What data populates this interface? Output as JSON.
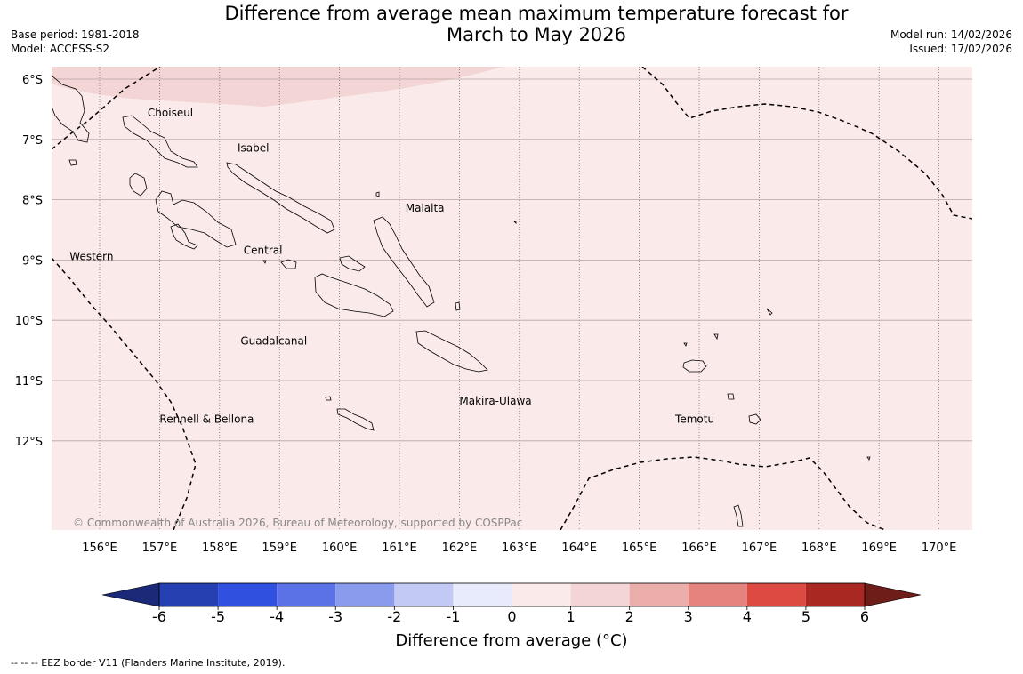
{
  "header": {
    "title_line1": "Difference from average mean maximum temperature forecast for",
    "title_line2": "March to May 2026",
    "base_period": "Base period: 1981-2018",
    "model": "Model: ACCESS-S2",
    "model_run": "Model run: 14/02/2026",
    "issued": "Issued: 17/02/2026"
  },
  "map": {
    "lon_range": [
      155.2,
      170.5
    ],
    "lat_range": [
      -13.5,
      -5.8
    ],
    "lon_ticks": [
      156,
      157,
      158,
      159,
      160,
      161,
      162,
      163,
      164,
      165,
      166,
      167,
      168,
      169,
      170
    ],
    "lon_tick_labels": [
      "156°E",
      "157°E",
      "158°E",
      "159°E",
      "160°E",
      "161°E",
      "162°E",
      "163°E",
      "164°E",
      "165°E",
      "166°E",
      "167°E",
      "168°E",
      "169°E",
      "170°E"
    ],
    "lat_ticks": [
      -6,
      -7,
      -8,
      -9,
      -10,
      -11,
      -12
    ],
    "lat_tick_labels": [
      "6°S",
      "7°S",
      "8°S",
      "9°S",
      "10°S",
      "11°S",
      "12°S"
    ],
    "background_category": "0 to 1",
    "region_labels": [
      {
        "name": "Choiseul",
        "lon": 156.8,
        "lat": -6.62
      },
      {
        "name": "Isabel",
        "lon": 158.3,
        "lat": -7.2
      },
      {
        "name": "Malaita",
        "lon": 161.1,
        "lat": -8.2
      },
      {
        "name": "Western",
        "lon": 155.5,
        "lat": -9.0
      },
      {
        "name": "Central",
        "lon": 158.4,
        "lat": -8.9
      },
      {
        "name": "Guadalcanal",
        "lon": 158.35,
        "lat": -10.4
      },
      {
        "name": "Makira-Ulawa",
        "lon": 162.0,
        "lat": -11.4
      },
      {
        "name": "Rennell & Bellona",
        "lon": 157.0,
        "lat": -11.7
      },
      {
        "name": "Temotu",
        "lon": 165.6,
        "lat": -11.7
      }
    ],
    "copyright": "© Commonwealth of Australia 2026, Bureau of Meteorology, supported by COSPPac",
    "warm_band_category": "1 to 2"
  },
  "colorbar": {
    "ticks": [
      "-6",
      "-5",
      "-4",
      "-3",
      "-2",
      "-1",
      "0",
      "1",
      "2",
      "3",
      "4",
      "5",
      "6"
    ],
    "bins": [
      {
        "range": "-6 to -5",
        "color": "#2540b0"
      },
      {
        "range": "-5 to -4",
        "color": "#3050e0"
      },
      {
        "range": "-4 to -3",
        "color": "#5a72e6"
      },
      {
        "range": "-3 to -2",
        "color": "#8a9bee"
      },
      {
        "range": "-2 to -1",
        "color": "#c2c9f5"
      },
      {
        "range": "-1 to 0",
        "color": "#e8ebfb"
      },
      {
        "range": "0 to 1",
        "color": "#fbeaea"
      },
      {
        "range": "1 to 2",
        "color": "#f2d5d4"
      },
      {
        "range": "2 to 3",
        "color": "#ecaeab"
      },
      {
        "range": "3 to 4",
        "color": "#e5847e"
      },
      {
        "range": "4 to 5",
        "color": "#dc4a42"
      },
      {
        "range": "5 to 6",
        "color": "#a92922"
      }
    ],
    "low_extend_color": "#1a2a78",
    "high_extend_color": "#6e1d18",
    "label": "Difference from average (°C)"
  },
  "footer": {
    "eez_note": "--  --  -- EEZ border V11 (Flanders Marine Institute, 2019)."
  }
}
